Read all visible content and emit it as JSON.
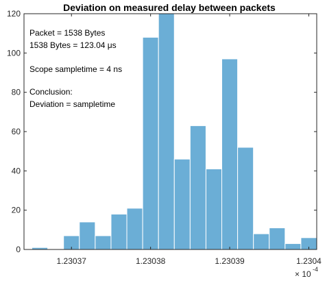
{
  "chart_data": {
    "type": "bar",
    "title": "Deviation on measured delay between packets",
    "xlabel": "",
    "ylabel": "",
    "x_scale_label": "× 10",
    "x_scale_exponent": "-4",
    "xlim": [
      1.230364,
      1.230401
    ],
    "ylim": [
      0,
      120
    ],
    "x_ticks": [
      1.23037,
      1.23038,
      1.23039,
      1.2304
    ],
    "x_tick_labels": [
      "1.23037",
      "1.23038",
      "1.23039",
      "1.2304"
    ],
    "y_ticks": [
      0,
      20,
      40,
      60,
      80,
      100,
      120
    ],
    "y_tick_labels": [
      "0",
      "20",
      "40",
      "60",
      "80",
      "100",
      "120"
    ],
    "bin_width": 2e-06,
    "bin_starts": [
      1.230365,
      1.230367,
      1.230369,
      1.230371,
      1.230373,
      1.230375,
      1.230377,
      1.230379,
      1.230381,
      1.230383,
      1.230385,
      1.230387,
      1.230389,
      1.230391,
      1.230393,
      1.230395,
      1.230397,
      1.230399
    ],
    "values": [
      1,
      0,
      7,
      14,
      7,
      18,
      21,
      108,
      120,
      46,
      63,
      41,
      97,
      52,
      8,
      11,
      3,
      6
    ],
    "bar_color": "#6baed6",
    "bar_edge_color": "#ffffff",
    "grid": false,
    "annotations": [
      "Packet = 1538 Bytes",
      "1538 Bytes = 123.04 μs",
      "Scope sampletime = 4 ns",
      "Conclusion:",
      "Deviation = sampletime"
    ]
  }
}
